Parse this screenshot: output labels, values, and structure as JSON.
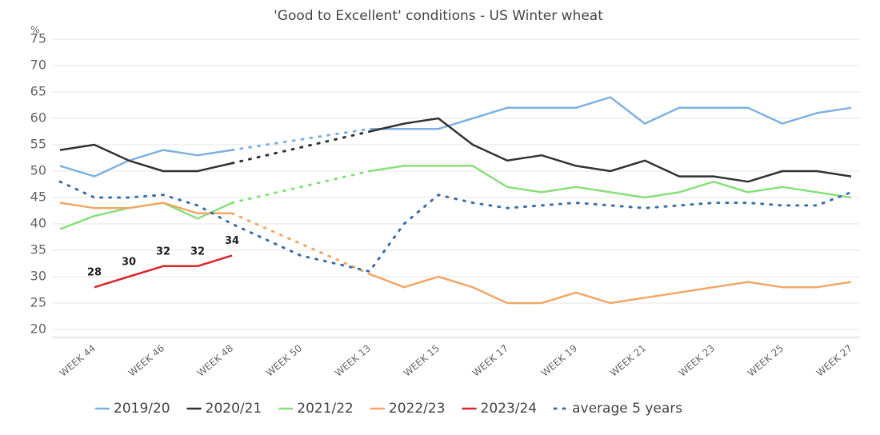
{
  "chart_data": {
    "type": "line",
    "title": "'Good to Excellent' conditions - US Winter wheat",
    "y_unit": "%",
    "categories": [
      null,
      "WEEK 44",
      null,
      "WEEK 46",
      null,
      "WEEK 48",
      null,
      "WEEK 50",
      null,
      "WEEK 13",
      null,
      "WEEK 15",
      null,
      "WEEK 17",
      null,
      "WEEK 19",
      null,
      "WEEK 21",
      null,
      "WEEK 23",
      null,
      "WEEK 25",
      null,
      "WEEK 27"
    ],
    "ylim": [
      20,
      75
    ],
    "yticks": [
      20,
      25,
      30,
      35,
      40,
      45,
      50,
      55,
      60,
      65,
      70,
      75
    ],
    "grid": true,
    "legend": "bottom",
    "series": [
      {
        "name": "2019/20",
        "color": "#7fb1e0",
        "values": [
          51,
          49,
          52,
          54,
          53,
          54,
          null,
          null,
          null,
          58,
          58,
          58,
          60,
          62,
          62,
          62,
          64,
          59,
          62,
          62,
          62,
          59,
          61,
          62
        ]
      },
      {
        "name": "2020/21",
        "color": "#333333",
        "values": [
          54,
          55,
          52,
          50,
          50,
          51.5,
          null,
          null,
          null,
          57.5,
          59,
          60,
          55,
          52,
          53,
          51,
          50,
          52,
          49,
          49,
          48,
          50,
          50,
          49
        ]
      },
      {
        "name": "2021/22",
        "color": "#88e07a",
        "values": [
          39,
          41.5,
          43,
          44,
          41,
          44,
          null,
          null,
          null,
          50,
          51,
          51,
          51,
          47,
          46,
          47,
          46,
          45,
          46,
          48,
          46,
          47,
          46,
          45
        ]
      },
      {
        "name": "2022/23",
        "color": "#f0a868",
        "values": [
          44,
          43,
          43,
          44,
          42,
          42,
          null,
          null,
          null,
          30.5,
          28,
          30,
          28,
          25,
          25,
          27,
          25,
          26,
          27,
          28,
          29,
          28,
          28,
          29
        ]
      },
      {
        "name": "2023/24",
        "color": "#d9262c",
        "values": [
          null,
          28,
          30,
          32,
          32,
          34,
          null,
          null,
          null,
          null,
          null,
          null,
          null,
          null,
          null,
          null,
          null,
          null,
          null,
          null,
          null,
          null,
          null,
          null
        ],
        "value_labels": [
          null,
          "28",
          "30",
          "32",
          "32",
          "34",
          null,
          null,
          null,
          null,
          null,
          null,
          null,
          null,
          null,
          null,
          null,
          null,
          null,
          null,
          null,
          null,
          null,
          null
        ]
      },
      {
        "name": "average 5 years",
        "color": "#3b6fa8",
        "line_style": "dotted",
        "values": [
          48,
          45,
          45,
          45.5,
          43.5,
          40,
          37,
          34,
          32.5,
          31,
          40,
          45.5,
          44,
          43,
          43.5,
          44,
          43.5,
          43,
          43.5,
          44,
          44,
          43.5,
          43.5,
          46
        ]
      }
    ]
  }
}
